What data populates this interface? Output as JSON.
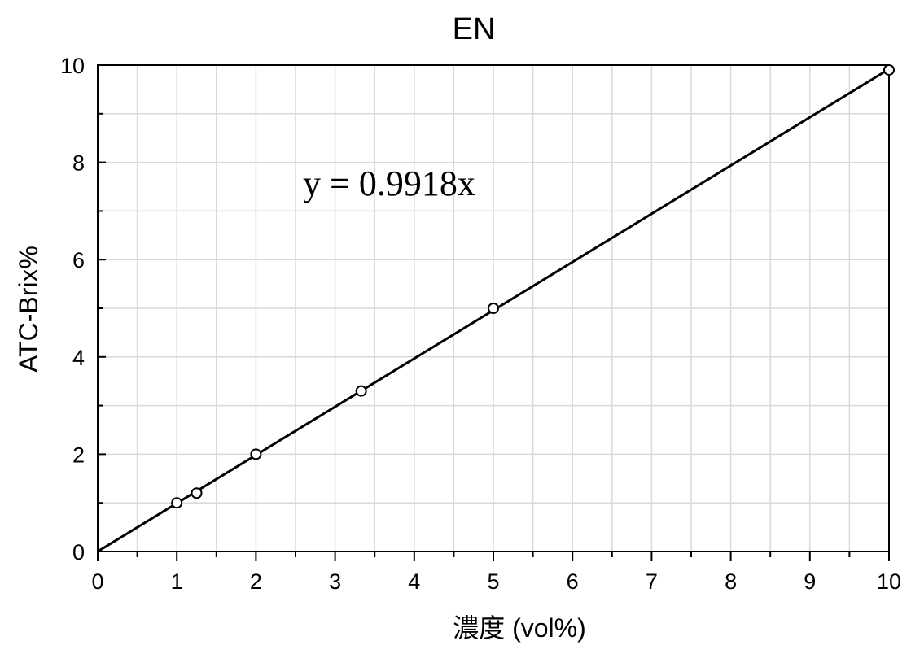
{
  "chart_data": {
    "type": "scatter",
    "title": "EN",
    "xlabel": "濃度 (vol%)",
    "ylabel": "ATC-Brix%",
    "xlim": [
      0,
      10
    ],
    "ylim": [
      0,
      10
    ],
    "x_ticks": [
      0,
      1,
      2,
      3,
      4,
      5,
      6,
      7,
      8,
      9,
      10
    ],
    "y_ticks": [
      0,
      2,
      4,
      6,
      8,
      10
    ],
    "x_minor_step": 0.5,
    "y_minor_step": 1,
    "grid": true,
    "series": [
      {
        "marker": "open-circle",
        "points": [
          {
            "x": 1.0,
            "y": 1.0
          },
          {
            "x": 1.25,
            "y": 1.2
          },
          {
            "x": 2.0,
            "y": 2.0
          },
          {
            "x": 3.33,
            "y": 3.3
          },
          {
            "x": 5.0,
            "y": 5.0
          },
          {
            "x": 10.0,
            "y": 9.9
          }
        ]
      }
    ],
    "trendline": {
      "slope": 0.9918,
      "intercept": 0,
      "x_range": [
        0,
        10
      ],
      "equation": "y = 0.9918x"
    }
  }
}
